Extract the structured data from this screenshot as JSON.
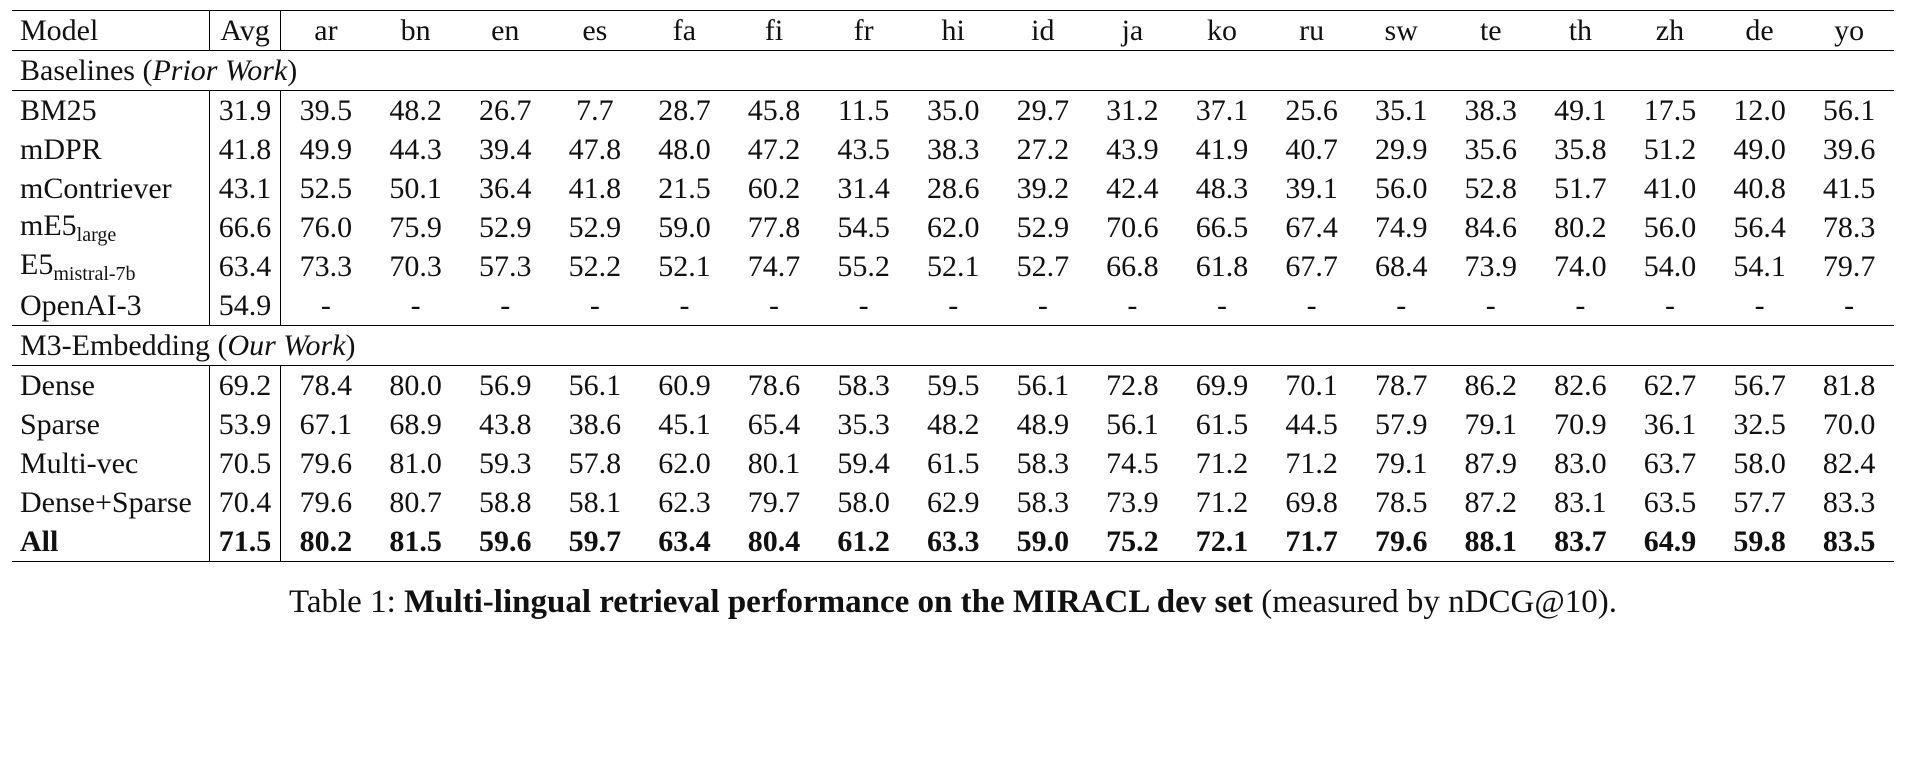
{
  "table": {
    "header": [
      "Model",
      "Avg",
      "ar",
      "bn",
      "en",
      "es",
      "fa",
      "fi",
      "fr",
      "hi",
      "id",
      "ja",
      "ko",
      "ru",
      "sw",
      "te",
      "th",
      "zh",
      "de",
      "yo"
    ],
    "groups": [
      {
        "title": [
          "Baselines (",
          "Prior Work",
          ")"
        ],
        "rows": [
          {
            "model": "BM25",
            "cells": [
              "31.9",
              "39.5",
              "48.2",
              "26.7",
              "7.7",
              "28.7",
              "45.8",
              "11.5",
              "35.0",
              "29.7",
              "31.2",
              "37.1",
              "25.6",
              "35.1",
              "38.3",
              "49.1",
              "17.5",
              "12.0",
              "56.1"
            ]
          },
          {
            "model": "mDPR",
            "cells": [
              "41.8",
              "49.9",
              "44.3",
              "39.4",
              "47.8",
              "48.0",
              "47.2",
              "43.5",
              "38.3",
              "27.2",
              "43.9",
              "41.9",
              "40.7",
              "29.9",
              "35.6",
              "35.8",
              "51.2",
              "49.0",
              "39.6"
            ]
          },
          {
            "model": "mContriever",
            "cells": [
              "43.1",
              "52.5",
              "50.1",
              "36.4",
              "41.8",
              "21.5",
              "60.2",
              "31.4",
              "28.6",
              "39.2",
              "42.4",
              "48.3",
              "39.1",
              "56.0",
              "52.8",
              "51.7",
              "41.0",
              "40.8",
              "41.5"
            ]
          },
          {
            "model": "mE5",
            "model_sub": "large",
            "cells": [
              "66.6",
              "76.0",
              "75.9",
              "52.9",
              "52.9",
              "59.0",
              "77.8",
              "54.5",
              "62.0",
              "52.9",
              "70.6",
              "66.5",
              "67.4",
              "74.9",
              "84.6",
              "80.2",
              "56.0",
              "56.4",
              "78.3"
            ]
          },
          {
            "model": "E5",
            "model_sub": "mistral-7b",
            "cells": [
              "63.4",
              "73.3",
              "70.3",
              "57.3",
              "52.2",
              "52.1",
              "74.7",
              "55.2",
              "52.1",
              "52.7",
              "66.8",
              "61.8",
              "67.7",
              "68.4",
              "73.9",
              "74.0",
              "54.0",
              "54.1",
              "79.7"
            ]
          },
          {
            "model": "OpenAI-3",
            "cells": [
              "54.9",
              "-",
              "-",
              "-",
              "-",
              "-",
              "-",
              "-",
              "-",
              "-",
              "-",
              "-",
              "-",
              "-",
              "-",
              "-",
              "-",
              "-",
              "-"
            ]
          }
        ]
      },
      {
        "title": [
          "M3-Embedding (",
          "Our Work",
          ")"
        ],
        "rows": [
          {
            "model": "Dense",
            "cells": [
              "69.2",
              "78.4",
              "80.0",
              "56.9",
              "56.1",
              "60.9",
              "78.6",
              "58.3",
              "59.5",
              "56.1",
              "72.8",
              "69.9",
              "70.1",
              "78.7",
              "86.2",
              "82.6",
              "62.7",
              "56.7",
              "81.8"
            ]
          },
          {
            "model": "Sparse",
            "cells": [
              "53.9",
              "67.1",
              "68.9",
              "43.8",
              "38.6",
              "45.1",
              "65.4",
              "35.3",
              "48.2",
              "48.9",
              "56.1",
              "61.5",
              "44.5",
              "57.9",
              "79.1",
              "70.9",
              "36.1",
              "32.5",
              "70.0"
            ]
          },
          {
            "model": "Multi-vec",
            "cells": [
              "70.5",
              "79.6",
              "81.0",
              "59.3",
              "57.8",
              "62.0",
              "80.1",
              "59.4",
              "61.5",
              "58.3",
              "74.5",
              "71.2",
              "71.2",
              "79.1",
              "87.9",
              "83.0",
              "63.7",
              "58.0",
              "82.4"
            ]
          },
          {
            "model": "Dense+Sparse",
            "cells": [
              "70.4",
              "79.6",
              "80.7",
              "58.8",
              "58.1",
              "62.3",
              "79.7",
              "58.0",
              "62.9",
              "58.3",
              "73.9",
              "71.2",
              "69.8",
              "78.5",
              "87.2",
              "83.1",
              "63.5",
              "57.7",
              "83.3"
            ]
          },
          {
            "model": "All",
            "bold": true,
            "cells": [
              "71.5",
              "80.2",
              "81.5",
              "59.6",
              "59.7",
              "63.4",
              "80.4",
              "61.2",
              "63.3",
              "59.0",
              "75.2",
              "72.1",
              "71.7",
              "79.6",
              "88.1",
              "83.7",
              "64.9",
              "59.8",
              "83.5"
            ]
          }
        ]
      }
    ]
  },
  "caption": {
    "label": "Table 1:",
    "bold": "Multi-lingual retrieval performance on the MIRACL dev set",
    "rest": "(measured by nDCG@10)."
  }
}
